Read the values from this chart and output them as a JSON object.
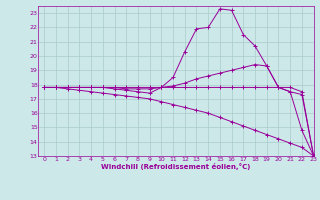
{
  "xlabel": "Windchill (Refroidissement éolien,°C)",
  "xlim": [
    -0.5,
    23
  ],
  "ylim": [
    13,
    23.5
  ],
  "yticks": [
    13,
    14,
    15,
    16,
    17,
    18,
    19,
    20,
    21,
    22,
    23
  ],
  "xticks": [
    0,
    1,
    2,
    3,
    4,
    5,
    6,
    7,
    8,
    9,
    10,
    11,
    12,
    13,
    14,
    15,
    16,
    17,
    18,
    19,
    20,
    21,
    22,
    23
  ],
  "background_color": "#cce8e8",
  "line_color": "#990099",
  "grid_color": "#aacccc",
  "lines": [
    {
      "x": [
        0,
        1,
        2,
        3,
        4,
        5,
        6,
        7,
        8,
        9,
        10,
        11,
        12,
        13,
        14,
        15,
        16,
        17,
        18,
        19,
        20,
        21,
        22,
        23
      ],
      "y": [
        17.8,
        17.8,
        17.7,
        17.6,
        17.5,
        17.4,
        17.3,
        17.2,
        17.1,
        17.0,
        16.8,
        16.6,
        16.4,
        16.2,
        16.0,
        15.7,
        15.4,
        15.1,
        14.8,
        14.5,
        14.2,
        13.9,
        13.6,
        13.0
      ]
    },
    {
      "x": [
        0,
        1,
        2,
        3,
        4,
        5,
        6,
        7,
        8,
        9,
        10,
        11,
        12,
        13,
        14,
        15,
        16,
        17,
        18,
        19,
        20,
        21,
        22,
        23
      ],
      "y": [
        17.8,
        17.8,
        17.8,
        17.8,
        17.8,
        17.8,
        17.8,
        17.8,
        17.8,
        17.8,
        17.8,
        17.8,
        17.8,
        17.8,
        17.8,
        17.8,
        17.8,
        17.8,
        17.8,
        17.8,
        17.8,
        17.8,
        17.5,
        13.0
      ]
    },
    {
      "x": [
        0,
        1,
        2,
        3,
        4,
        5,
        6,
        7,
        8,
        9,
        10,
        11,
        12,
        13,
        14,
        15,
        16,
        17,
        18,
        19,
        20,
        21,
        22,
        23
      ],
      "y": [
        17.8,
        17.8,
        17.8,
        17.8,
        17.8,
        17.8,
        17.8,
        17.7,
        17.7,
        17.7,
        17.8,
        17.9,
        18.1,
        18.4,
        18.6,
        18.8,
        19.0,
        19.2,
        19.4,
        19.3,
        17.8,
        17.5,
        17.3,
        13.0
      ]
    },
    {
      "x": [
        0,
        1,
        2,
        3,
        4,
        5,
        6,
        7,
        8,
        9,
        10,
        11,
        12,
        13,
        14,
        15,
        16,
        17,
        18,
        19,
        20,
        21,
        22,
        23
      ],
      "y": [
        17.8,
        17.8,
        17.8,
        17.8,
        17.8,
        17.8,
        17.7,
        17.6,
        17.5,
        17.4,
        17.8,
        18.5,
        20.3,
        21.9,
        22.0,
        23.3,
        23.2,
        21.5,
        20.7,
        19.3,
        17.8,
        17.5,
        14.8,
        13.0
      ]
    }
  ]
}
